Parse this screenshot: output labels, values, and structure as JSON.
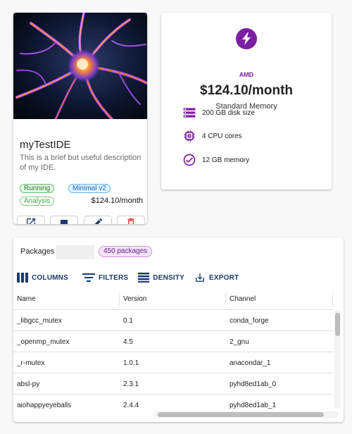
{
  "ide": {
    "name": "myTestIDE",
    "description": "This is a brief but useful description of my IDE.",
    "badges": {
      "status": "Running",
      "plan": "Minimal v2",
      "category": "Analysis"
    },
    "price": "$124.10/month",
    "actions": [
      "open-external-icon",
      "stop-icon",
      "edit-icon",
      "delete-icon"
    ]
  },
  "plan": {
    "brand": "AMD",
    "price": "$124.10/month",
    "type": "Standard Memory",
    "specs": [
      {
        "icon": "storage-icon",
        "label": "200 GB disk size"
      },
      {
        "icon": "cpu-icon",
        "label": "4 CPU cores"
      },
      {
        "icon": "check-circle-icon",
        "label": "12 GB memory"
      }
    ],
    "accent_color": "#7b1fa2"
  },
  "packages": {
    "title": "Packages",
    "count_badge": "450 packages",
    "toolbar": {
      "columns": "COLUMNS",
      "filters": "FILTERS",
      "density": "DENSITY",
      "export": "EXPORT"
    },
    "columns": [
      "Name",
      "Version",
      "Channel"
    ],
    "rows": [
      [
        "_libgcc_mutex",
        "0.1",
        "conda_forge"
      ],
      [
        "_openmp_mutex",
        "4.5",
        "2_gnu"
      ],
      [
        "_r-mutex",
        "1.0.1",
        "anacondar_1"
      ],
      [
        "absl-py",
        "2.3.1",
        "pyhd8ed1ab_0"
      ],
      [
        "aiohappyeyeballs",
        "2.4.4",
        "pyhd8ed1ab_1"
      ]
    ]
  }
}
